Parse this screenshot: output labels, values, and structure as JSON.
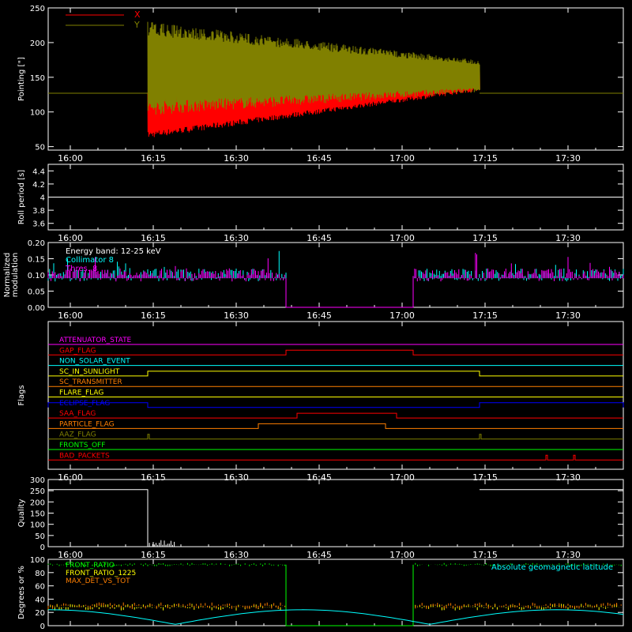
{
  "time_ticks": [
    "16:00",
    "16:15",
    "16:30",
    "16:45",
    "17:00",
    "17:15",
    "17:30"
  ],
  "chart_data": [
    {
      "type": "line",
      "ylabel": "Pointing [\"]",
      "ylim": [
        45,
        250
      ],
      "yticks": [
        50,
        100,
        150,
        200,
        250
      ],
      "legend": {
        "placement": "top-left",
        "entries": [
          {
            "name": "X",
            "color": "#ff0000"
          },
          {
            "name": "Y",
            "color": "#808000"
          }
        ]
      },
      "x_window": [
        "16:14",
        "17:14"
      ],
      "baseline": 127,
      "series": [
        {
          "name": "X",
          "color": "#ff0000",
          "start": [
            "16:14",
            127,
            62
          ],
          "end": [
            "17:14",
            165,
            130
          ]
        },
        {
          "name": "Y",
          "color": "#808000",
          "start": [
            "16:14",
            230,
            95
          ],
          "end": [
            "17:14",
            175,
            128
          ]
        }
      ]
    },
    {
      "type": "line",
      "ylabel": "Roll period [s]",
      "ylim": [
        3.5,
        4.5
      ],
      "yticks": [
        3.6,
        3.8,
        4.0,
        4.2,
        4.4
      ],
      "series": [
        {
          "color": "#ffffff",
          "constant": 4.0
        }
      ]
    },
    {
      "type": "line",
      "ylabel": "Normalized modulation",
      "ylim": [
        0,
        0.2
      ],
      "yticks": [
        "0.00",
        "0.05",
        "0.10",
        "0.15",
        "0.20"
      ],
      "annotations": [
        {
          "text": "Energy band: 12-25 keV",
          "color": "#ffffff"
        },
        {
          "text": "Collimator 8",
          "color": "#00ffff"
        },
        {
          "text": "Thres. 8",
          "color": "#ff00ff"
        }
      ],
      "gap": [
        "16:39",
        "17:02"
      ],
      "mean": 0.1
    },
    {
      "type": "line",
      "ylabel": "Flags",
      "flags": [
        {
          "label": "ATTENUATOR_STATE",
          "color": "#ff00ff",
          "high": []
        },
        {
          "label": "GAP_FLAG",
          "color": "#ff0000",
          "high": [
            [
              "16:39",
              "17:02"
            ]
          ]
        },
        {
          "label": "NON_SOLAR_EVENT",
          "color": "#00ffff",
          "high": []
        },
        {
          "label": "SC_IN_SUNLIGHT",
          "color": "#ffff00",
          "high": [
            [
              "16:14",
              "17:14"
            ]
          ]
        },
        {
          "label": "SC_TRANSMITTER",
          "color": "#ff7f00",
          "high": []
        },
        {
          "label": "FLARE_FLAG",
          "color": "#ffff00",
          "high": []
        },
        {
          "label": "ECLIPSE_FLAG",
          "color": "#0000ff",
          "high": [
            [
              "15:56",
              "16:14"
            ],
            [
              "17:14",
              "17:40"
            ]
          ]
        },
        {
          "label": "SAA_FLAG",
          "color": "#ff0000",
          "high": [
            [
              "16:41",
              "16:59"
            ]
          ]
        },
        {
          "label": "PARTICLE_FLAG",
          "color": "#ff7f00",
          "high": [
            [
              "16:34",
              "16:57"
            ]
          ]
        },
        {
          "label": "AAZ_FLAG",
          "color": "#808000",
          "high": [
            [
              "16:14",
              "16:14"
            ],
            [
              "17:14",
              "17:14"
            ]
          ]
        },
        {
          "label": "FRONTS_OFF",
          "color": "#00ff00",
          "high": []
        },
        {
          "label": "BAD_PACKETS",
          "color": "#ff0000",
          "high": [
            [
              "17:26",
              "17:26"
            ],
            [
              "17:31",
              "17:31"
            ]
          ]
        }
      ]
    },
    {
      "type": "line",
      "ylabel": "Quality",
      "ylim": [
        0,
        300
      ],
      "yticks": [
        0,
        50,
        100,
        150,
        200,
        250,
        300
      ],
      "segments": [
        {
          "from": "15:56",
          "to": "16:14",
          "value": 255
        },
        {
          "from": "17:14",
          "to": "17:40",
          "value": 255
        }
      ]
    },
    {
      "type": "line",
      "ylabel": "Degrees or %",
      "ylim": [
        0,
        100
      ],
      "yticks": [
        0,
        20,
        40,
        60,
        80,
        100
      ],
      "gap": [
        "16:39",
        "17:02"
      ],
      "legend": {
        "placement": "top-left",
        "entries": [
          {
            "name": "FRONT_RATIO",
            "color": "#00ff00"
          },
          {
            "name": "FRONT_RATIO_1225",
            "color": "#ffff00"
          },
          {
            "name": "MAX_DET_VS_TOT",
            "color": "#ff7f00"
          }
        ]
      },
      "annotation": {
        "text": "Absolute geomagnetic latitude",
        "color": "#00ffff"
      },
      "series": [
        {
          "name": "FRONT_RATIO",
          "color": "#00ff00",
          "level": 92
        },
        {
          "name": "FRONT_RATIO_1225",
          "color": "#ffff00",
          "level": 28
        },
        {
          "name": "MAX_DET_VS_TOT",
          "color": "#ff7f00",
          "level": 30
        },
        {
          "name": "Absolute geomagnetic latitude",
          "color": "#00ffff"
        }
      ]
    }
  ]
}
